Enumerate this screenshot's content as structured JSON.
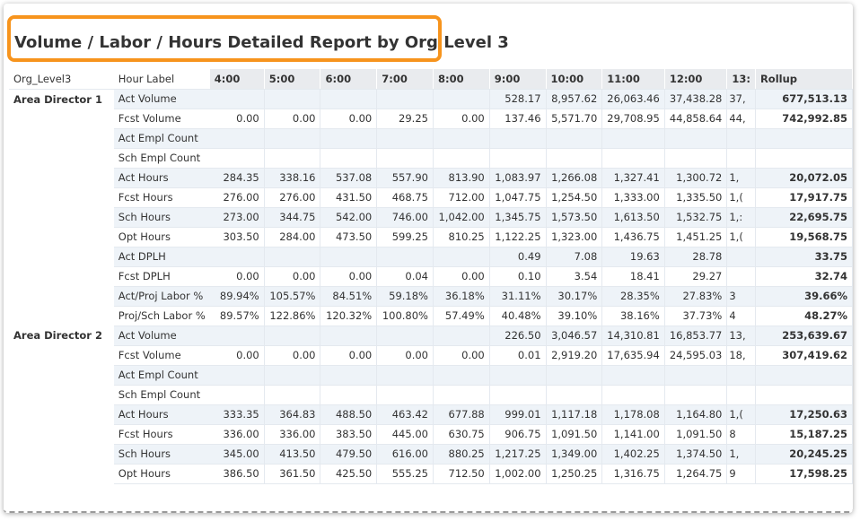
{
  "title": "Volume / Labor / Hours Detailed Report by Org Level 3",
  "table": {
    "headers": [
      "Org_Level3",
      "Hour Label",
      "4:00",
      "5:00",
      "6:00",
      "7:00",
      "8:00",
      "9:00",
      "10:00",
      "11:00",
      "12:00",
      "13:",
      "Rollup"
    ],
    "groups": [
      {
        "org": "Area Director 1",
        "rows": [
          {
            "label": "Act Volume",
            "cells": [
              null,
              null,
              null,
              null,
              null,
              "528.17",
              "8,957.62",
              "26,063.46",
              "37,438.28",
              "37,"
            ],
            "rollup": "677,513.13"
          },
          {
            "label": "Fcst Volume",
            "cells": [
              "0.00",
              "0.00",
              "0.00",
              "29.25",
              "0.00",
              "137.46",
              "5,571.70",
              "29,708.95",
              "44,858.64",
              "44,"
            ],
            "rollup": "742,992.85"
          },
          {
            "label": "Act Empl Count",
            "cells": [
              null,
              null,
              null,
              null,
              null,
              null,
              null,
              null,
              null,
              null
            ],
            "rollup": null
          },
          {
            "label": "Sch Empl Count",
            "cells": [
              null,
              null,
              null,
              null,
              null,
              null,
              null,
              null,
              null,
              null
            ],
            "rollup": null
          },
          {
            "label": "Act Hours",
            "cells": [
              "284.35",
              "338.16",
              "537.08",
              "557.90",
              "813.90",
              "1,083.97",
              "1,266.08",
              "1,327.41",
              "1,300.72",
              "1,"
            ],
            "rollup": "20,072.05"
          },
          {
            "label": "Fcst Hours",
            "cells": [
              "276.00",
              "276.00",
              "431.50",
              "468.75",
              "712.00",
              "1,047.75",
              "1,254.50",
              "1,333.00",
              "1,335.50",
              "1,("
            ],
            "rollup": "17,917.75"
          },
          {
            "label": "Sch Hours",
            "cells": [
              "273.00",
              "344.75",
              "542.00",
              "746.00",
              "1,042.00",
              "1,345.75",
              "1,573.50",
              "1,613.50",
              "1,532.75",
              "1,:"
            ],
            "rollup": "22,695.75"
          },
          {
            "label": "Opt Hours",
            "cells": [
              "303.50",
              "284.00",
              "473.50",
              "599.25",
              "810.25",
              "1,122.25",
              "1,323.00",
              "1,436.75",
              "1,451.25",
              "1,("
            ],
            "rollup": "19,568.75"
          },
          {
            "label": "Act DPLH",
            "cells": [
              null,
              null,
              null,
              null,
              null,
              "0.49",
              "7.08",
              "19.63",
              "28.78",
              null
            ],
            "rollup": "33.75"
          },
          {
            "label": "Fcst DPLH",
            "cells": [
              "0.00",
              "0.00",
              "0.00",
              "0.04",
              "0.00",
              "0.10",
              "3.54",
              "18.41",
              "29.27",
              null
            ],
            "rollup": "32.74"
          },
          {
            "label": "Act/Proj Labor %",
            "cells": [
              "89.94%",
              "105.57%",
              "84.51%",
              "59.18%",
              "36.18%",
              "31.11%",
              "30.17%",
              "28.35%",
              "27.83%",
              "3"
            ],
            "rollup": "39.66%"
          },
          {
            "label": "Proj/Sch Labor %",
            "cells": [
              "89.57%",
              "122.86%",
              "120.32%",
              "100.80%",
              "57.49%",
              "40.48%",
              "39.10%",
              "38.16%",
              "37.73%",
              "4"
            ],
            "rollup": "48.27%"
          }
        ]
      },
      {
        "org": "Area Director 2",
        "rows": [
          {
            "label": "Act Volume",
            "cells": [
              null,
              null,
              null,
              null,
              null,
              "226.50",
              "3,046.57",
              "14,310.81",
              "16,853.77",
              "13,"
            ],
            "rollup": "253,639.67"
          },
          {
            "label": "Fcst Volume",
            "cells": [
              "0.00",
              "0.00",
              "0.00",
              "0.00",
              "0.00",
              "0.01",
              "2,919.20",
              "17,635.94",
              "24,595.03",
              "18,"
            ],
            "rollup": "307,419.62"
          },
          {
            "label": "Act Empl Count",
            "cells": [
              null,
              null,
              null,
              null,
              null,
              null,
              null,
              null,
              null,
              null
            ],
            "rollup": null
          },
          {
            "label": "Sch Empl Count",
            "cells": [
              null,
              null,
              null,
              null,
              null,
              null,
              null,
              null,
              null,
              null
            ],
            "rollup": null
          },
          {
            "label": "Act Hours",
            "cells": [
              "333.35",
              "364.83",
              "488.50",
              "463.42",
              "677.88",
              "999.01",
              "1,117.18",
              "1,178.08",
              "1,164.80",
              "1,("
            ],
            "rollup": "17,250.63"
          },
          {
            "label": "Fcst Hours",
            "cells": [
              "336.00",
              "336.00",
              "383.50",
              "445.00",
              "630.75",
              "906.75",
              "1,091.50",
              "1,141.00",
              "1,091.50",
              "8"
            ],
            "rollup": "15,187.25"
          },
          {
            "label": "Sch Hours",
            "cells": [
              "345.00",
              "413.50",
              "479.50",
              "616.00",
              "880.25",
              "1,217.25",
              "1,349.00",
              "1,402.25",
              "1,374.50",
              "1,"
            ],
            "rollup": "20,245.25"
          },
          {
            "label": "Opt Hours",
            "cells": [
              "386.50",
              "361.50",
              "425.50",
              "555.25",
              "712.50",
              "1,002.00",
              "1,250.25",
              "1,316.75",
              "1,264.75",
              "9"
            ],
            "rollup": "17,598.25"
          }
        ]
      }
    ]
  }
}
